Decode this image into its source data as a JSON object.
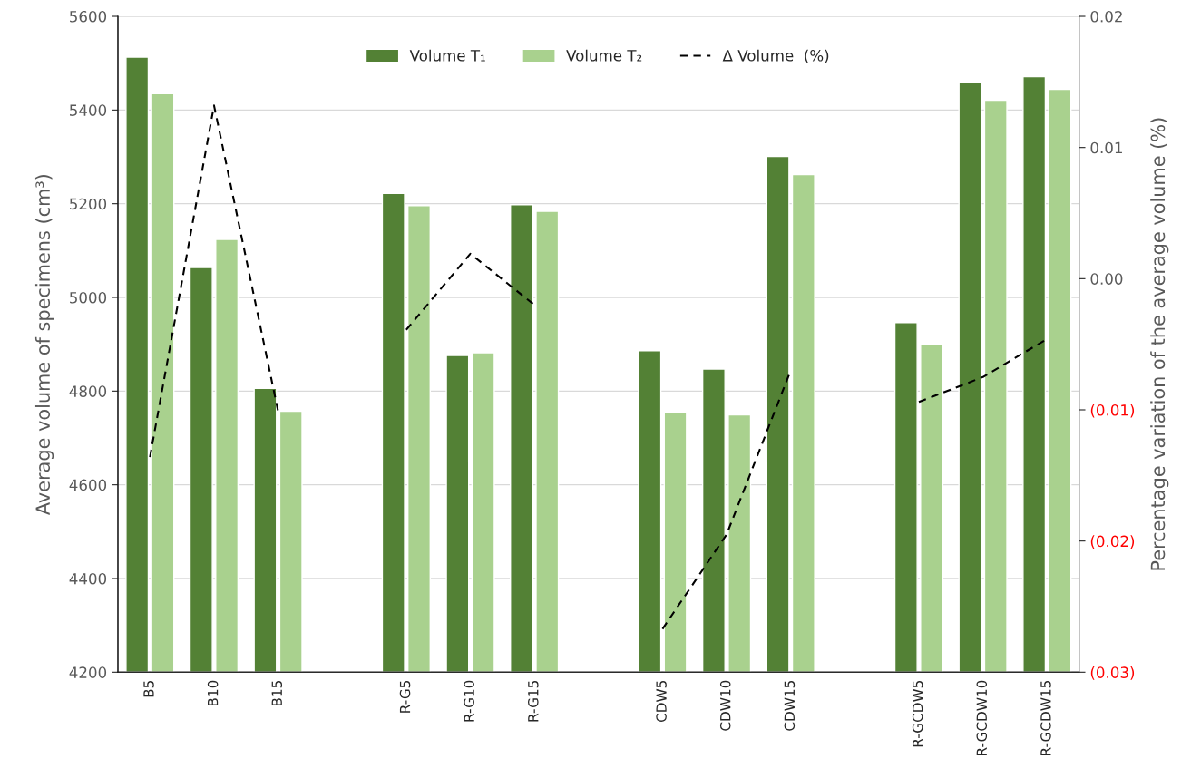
{
  "chart_data": {
    "type": "bar",
    "categories": [
      "B5",
      "B10",
      "B15",
      null,
      "R-G5",
      "R-G10",
      "R-G15",
      null,
      "CDW5",
      "CDW10",
      "CDW15",
      null,
      "R-GCDW5",
      "R-GCDW10",
      "R-GCDW15"
    ],
    "series": [
      {
        "name": "Volume T₁",
        "color": "#538135",
        "values": [
          5513,
          5064,
          4806,
          null,
          5222,
          4876,
          5198,
          null,
          4886,
          4847,
          5301,
          null,
          4946,
          5460,
          5471
        ]
      },
      {
        "name": "Volume T₂",
        "color": "#a9d18e",
        "values": [
          5435,
          5124,
          4757,
          null,
          5196,
          4882,
          5184,
          null,
          4755,
          4749,
          5262,
          null,
          4899,
          5421,
          5444
        ]
      },
      {
        "name": "Δ Volume  (%)",
        "type": "line",
        "axis": "y2",
        "color": "#000000",
        "line_style": "dashed",
        "marker": "none",
        "values": [
          -0.0136,
          0.0132,
          -0.0101,
          null,
          -0.0039,
          0.0019,
          -0.002,
          null,
          -0.0267,
          -0.0195,
          -0.007,
          null,
          -0.0094,
          -0.0075,
          -0.0046
        ]
      }
    ],
    "ylabel": "Average volume of specimens (cm³)",
    "y2label": "Percentage variation of the average volume (%)",
    "ylim": [
      4200,
      5600
    ],
    "yticks": [
      4200,
      4400,
      4600,
      4800,
      5000,
      5200,
      5400,
      5600
    ],
    "y2lim": [
      -0.03,
      0.02
    ],
    "y2ticks": [
      {
        "value": -0.03,
        "label": "(0.03)"
      },
      {
        "value": -0.02,
        "label": "(0.02)"
      },
      {
        "value": -0.01,
        "label": "(0.01)"
      },
      {
        "value": 0,
        "label": "0.00"
      },
      {
        "value": 0.01,
        "label": "0.01"
      },
      {
        "value": 0.02,
        "label": "0.02"
      }
    ],
    "grid": "y",
    "legend": "top"
  }
}
